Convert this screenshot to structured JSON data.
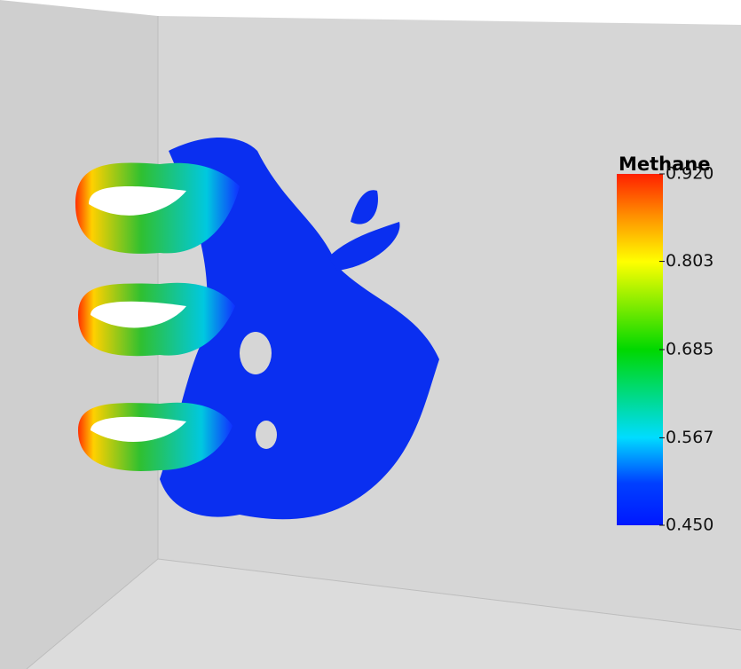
{
  "colorbar": {
    "title": "Methane",
    "range": [
      0.45,
      0.92
    ],
    "ticks": [
      {
        "value": 0.92,
        "label": "0.920"
      },
      {
        "value": 0.803,
        "label": "0.803"
      },
      {
        "value": 0.685,
        "label": "0.685"
      },
      {
        "value": 0.567,
        "label": "0.567"
      },
      {
        "value": 0.45,
        "label": "0.450"
      }
    ]
  }
}
